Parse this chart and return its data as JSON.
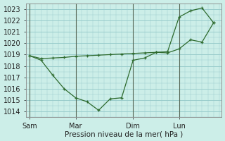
{
  "background_color": "#cceee8",
  "grid_color": "#99cccc",
  "line_color": "#2d6a2d",
  "vline_color": "#556655",
  "xlabel": "Pression niveau de la mer( hPa )",
  "ylim": [
    1013.5,
    1023.5
  ],
  "yticks": [
    1014,
    1015,
    1016,
    1017,
    1018,
    1019,
    1020,
    1021,
    1022,
    1023
  ],
  "day_labels": [
    "Sam",
    "Mar",
    "Dim",
    "Lun"
  ],
  "day_positions": [
    0,
    4,
    9,
    13
  ],
  "xlim": [
    -0.3,
    16.7
  ],
  "line1_x": [
    0,
    1,
    2,
    3,
    4,
    5,
    6,
    7,
    8,
    9,
    10,
    11,
    12,
    13,
    14,
    15,
    16
  ],
  "line1_y": [
    1018.9,
    1018.5,
    1017.2,
    1016.0,
    1015.2,
    1014.85,
    1014.1,
    1015.1,
    1015.2,
    1018.5,
    1018.7,
    1019.2,
    1019.15,
    1019.5,
    1020.3,
    1020.1,
    1021.8
  ],
  "line2_x": [
    0,
    1,
    2,
    3,
    4,
    5,
    6,
    7,
    8,
    9,
    10,
    11,
    12,
    13,
    14,
    15,
    16
  ],
  "line2_y": [
    1018.9,
    1018.65,
    1018.7,
    1018.75,
    1018.85,
    1018.9,
    1018.95,
    1019.0,
    1019.05,
    1019.1,
    1019.15,
    1019.2,
    1019.25,
    1022.3,
    1022.85,
    1023.1,
    1021.8
  ]
}
